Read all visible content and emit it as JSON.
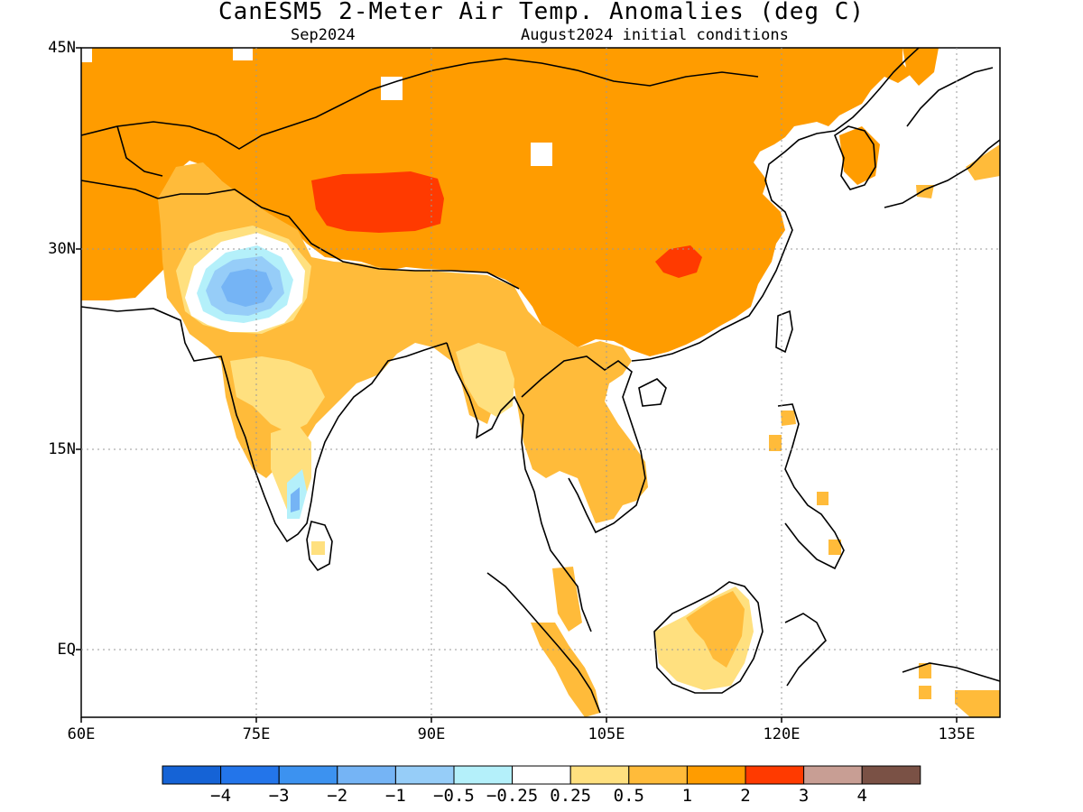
{
  "title": "CanESM5 2-Meter Air Temp. Anomalies (deg C)",
  "valid_month": "Sep2024",
  "init_conditions": "August2024 initial conditions",
  "map": {
    "lat_ticks": [
      "45N",
      "30N",
      "15N",
      "EQ"
    ],
    "lon_ticks": [
      "60E",
      "75E",
      "90E",
      "105E",
      "120E",
      "135E"
    ]
  },
  "colorbar": {
    "colors": [
      "#1563d6",
      "#2375ea",
      "#3c92f0",
      "#75b4f5",
      "#96cdf8",
      "#b4f0fa",
      "#ffffff",
      "#ffe07f",
      "#ffbb3a",
      "#ff9c00",
      "#ff3a00",
      "#c89e94",
      "#7a5145"
    ],
    "labels": [
      "-4",
      "-3",
      "-2",
      "-1",
      "-0.5",
      "-0.25",
      "0.25",
      "0.5",
      "1",
      "2",
      "3",
      "4"
    ]
  }
}
